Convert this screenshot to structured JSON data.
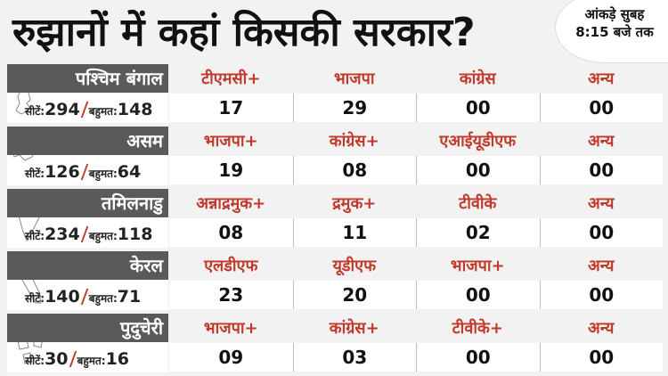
{
  "title": "रुझानों में कहां किसकी सरकार?",
  "time_badge": {
    "line1": "आंकड़े सुबह",
    "line2": "8:15 बजे तक"
  },
  "seats_label": "सीटें:",
  "majority_label": "बहुमत:",
  "states": [
    {
      "name": "पश्चिम बंगाल",
      "seats": "294",
      "majority": "148",
      "parties": [
        {
          "name": "टीएमसी+",
          "value": "17"
        },
        {
          "name": "भाजपा",
          "value": "29"
        },
        {
          "name": "कांग्रेस",
          "value": "00"
        },
        {
          "name": "अन्य",
          "value": "00"
        }
      ]
    },
    {
      "name": "असम",
      "seats": "126",
      "majority": "64",
      "parties": [
        {
          "name": "भाजपा+",
          "value": "19"
        },
        {
          "name": "कांग्रेस+",
          "value": "08"
        },
        {
          "name": "एआईयूडीएफ",
          "value": "00"
        },
        {
          "name": "अन्य",
          "value": "00"
        }
      ]
    },
    {
      "name": "तमिलनाडु",
      "seats": "234",
      "majority": "118",
      "parties": [
        {
          "name": "अन्नाद्रमुक+",
          "value": "08"
        },
        {
          "name": "द्रमुक+",
          "value": "11"
        },
        {
          "name": "टीवीके",
          "value": "02"
        },
        {
          "name": "अन्य",
          "value": "00"
        }
      ]
    },
    {
      "name": "केरल",
      "seats": "140",
      "majority": "71",
      "parties": [
        {
          "name": "एलडीएफ",
          "value": "23"
        },
        {
          "name": "यूडीएफ",
          "value": "20"
        },
        {
          "name": "भाजपा+",
          "value": "00"
        },
        {
          "name": "अन्य",
          "value": "00"
        }
      ]
    },
    {
      "name": "पुदुचेरी",
      "seats": "30",
      "majority": "16",
      "parties": [
        {
          "name": "भाजपा+",
          "value": "09"
        },
        {
          "name": "कांग्रेस+",
          "value": "03"
        },
        {
          "name": "टीवीके+",
          "value": "00"
        },
        {
          "name": "अन्य",
          "value": "00"
        }
      ]
    }
  ]
}
